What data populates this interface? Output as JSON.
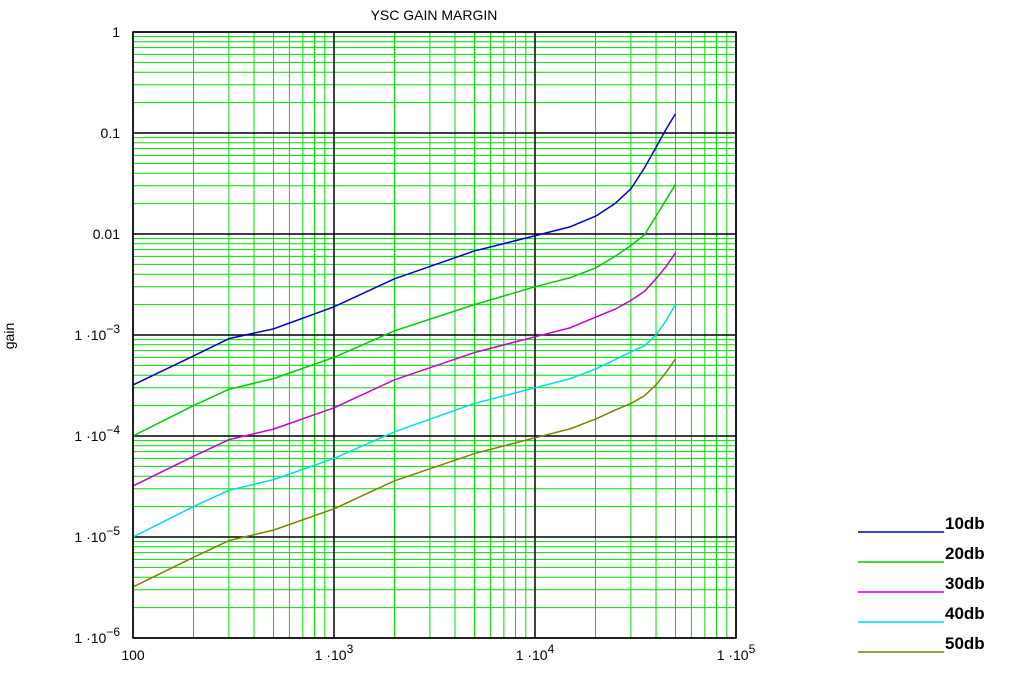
{
  "chart_data": {
    "type": "line",
    "title": "YSC  GAIN MARGIN",
    "xlabel": "",
    "ylabel": "gain",
    "x_scale": "log",
    "y_scale": "log",
    "xlim": [
      100,
      100000
    ],
    "ylim": [
      1e-06,
      1
    ],
    "grid": true,
    "grid_colors": {
      "minor": "#00dd00",
      "major": "#000000"
    },
    "legend_position": "right",
    "x_ticks": [
      {
        "value": 100,
        "mant": "100",
        "exp": ""
      },
      {
        "value": 1000,
        "mant": "1 ·10",
        "exp": "3"
      },
      {
        "value": 10000,
        "mant": "1 ·10",
        "exp": "4"
      },
      {
        "value": 100000,
        "mant": "1 ·10",
        "exp": "5"
      }
    ],
    "y_ticks": [
      {
        "value": 1,
        "mant": "1",
        "exp": ""
      },
      {
        "value": 0.1,
        "mant": "0.1",
        "exp": ""
      },
      {
        "value": 0.01,
        "mant": "0.01",
        "exp": ""
      },
      {
        "value": 0.001,
        "mant": "1 ·10",
        "exp": "−3"
      },
      {
        "value": 0.0001,
        "mant": "1 ·10",
        "exp": "−4"
      },
      {
        "value": 1e-05,
        "mant": "1 ·10",
        "exp": "−5"
      },
      {
        "value": 1e-06,
        "mant": "1 ·10",
        "exp": "−6"
      }
    ],
    "series": [
      {
        "name": "10db",
        "color": "#0000cc",
        "points": [
          [
            100,
            0.00032
          ],
          [
            200,
            0.00062
          ],
          [
            300,
            0.00092
          ],
          [
            500,
            0.00115
          ],
          [
            1000,
            0.0019
          ],
          [
            2000,
            0.0036
          ],
          [
            5000,
            0.0068
          ],
          [
            10000,
            0.0096
          ],
          [
            15000,
            0.0118
          ],
          [
            20000,
            0.015
          ],
          [
            25000,
            0.02
          ],
          [
            30000,
            0.028
          ],
          [
            35000,
            0.045
          ],
          [
            40000,
            0.072
          ],
          [
            45000,
            0.11
          ],
          [
            50000,
            0.155
          ]
        ]
      },
      {
        "name": "20db",
        "color": "#00cc00",
        "points": [
          [
            100,
            0.0001
          ],
          [
            200,
            0.0002
          ],
          [
            300,
            0.00029
          ],
          [
            500,
            0.00037
          ],
          [
            1000,
            0.0006
          ],
          [
            2000,
            0.0011
          ],
          [
            5000,
            0.002
          ],
          [
            10000,
            0.003
          ],
          [
            15000,
            0.0037
          ],
          [
            20000,
            0.0046
          ],
          [
            25000,
            0.006
          ],
          [
            30000,
            0.0077
          ],
          [
            35000,
            0.0098
          ],
          [
            40000,
            0.015
          ],
          [
            45000,
            0.022
          ],
          [
            50000,
            0.031
          ]
        ]
      },
      {
        "name": "30db",
        "color": "#cc00cc",
        "points": [
          [
            100,
            3.2e-05
          ],
          [
            200,
            6.3e-05
          ],
          [
            300,
            9.2e-05
          ],
          [
            500,
            0.000117
          ],
          [
            1000,
            0.00019
          ],
          [
            2000,
            0.00036
          ],
          [
            5000,
            0.00067
          ],
          [
            10000,
            0.00096
          ],
          [
            15000,
            0.00118
          ],
          [
            20000,
            0.0015
          ],
          [
            25000,
            0.0018
          ],
          [
            30000,
            0.0022
          ],
          [
            35000,
            0.0027
          ],
          [
            40000,
            0.0036
          ],
          [
            45000,
            0.0048
          ],
          [
            50000,
            0.0065
          ]
        ]
      },
      {
        "name": "40db",
        "color": "#00dddd",
        "points": [
          [
            100,
            1e-05
          ],
          [
            200,
            2e-05
          ],
          [
            300,
            2.9e-05
          ],
          [
            500,
            3.7e-05
          ],
          [
            1000,
            6e-05
          ],
          [
            2000,
            0.00011
          ],
          [
            5000,
            0.00021
          ],
          [
            10000,
            0.0003
          ],
          [
            15000,
            0.00037
          ],
          [
            20000,
            0.00046
          ],
          [
            25000,
            0.00057
          ],
          [
            30000,
            0.00068
          ],
          [
            35000,
            0.00078
          ],
          [
            40000,
            0.001
          ],
          [
            45000,
            0.0014
          ],
          [
            50000,
            0.002
          ]
        ]
      },
      {
        "name": "50db",
        "color": "#808000",
        "points": [
          [
            100,
            3.2e-06
          ],
          [
            200,
            6.3e-06
          ],
          [
            300,
            9.2e-06
          ],
          [
            500,
            1.17e-05
          ],
          [
            1000,
            1.9e-05
          ],
          [
            2000,
            3.6e-05
          ],
          [
            5000,
            6.7e-05
          ],
          [
            10000,
            9.6e-05
          ],
          [
            15000,
            0.000118
          ],
          [
            20000,
            0.000147
          ],
          [
            25000,
            0.00018
          ],
          [
            30000,
            0.00021
          ],
          [
            35000,
            0.00025
          ],
          [
            40000,
            0.00032
          ],
          [
            45000,
            0.00043
          ],
          [
            50000,
            0.00058
          ]
        ]
      }
    ]
  }
}
